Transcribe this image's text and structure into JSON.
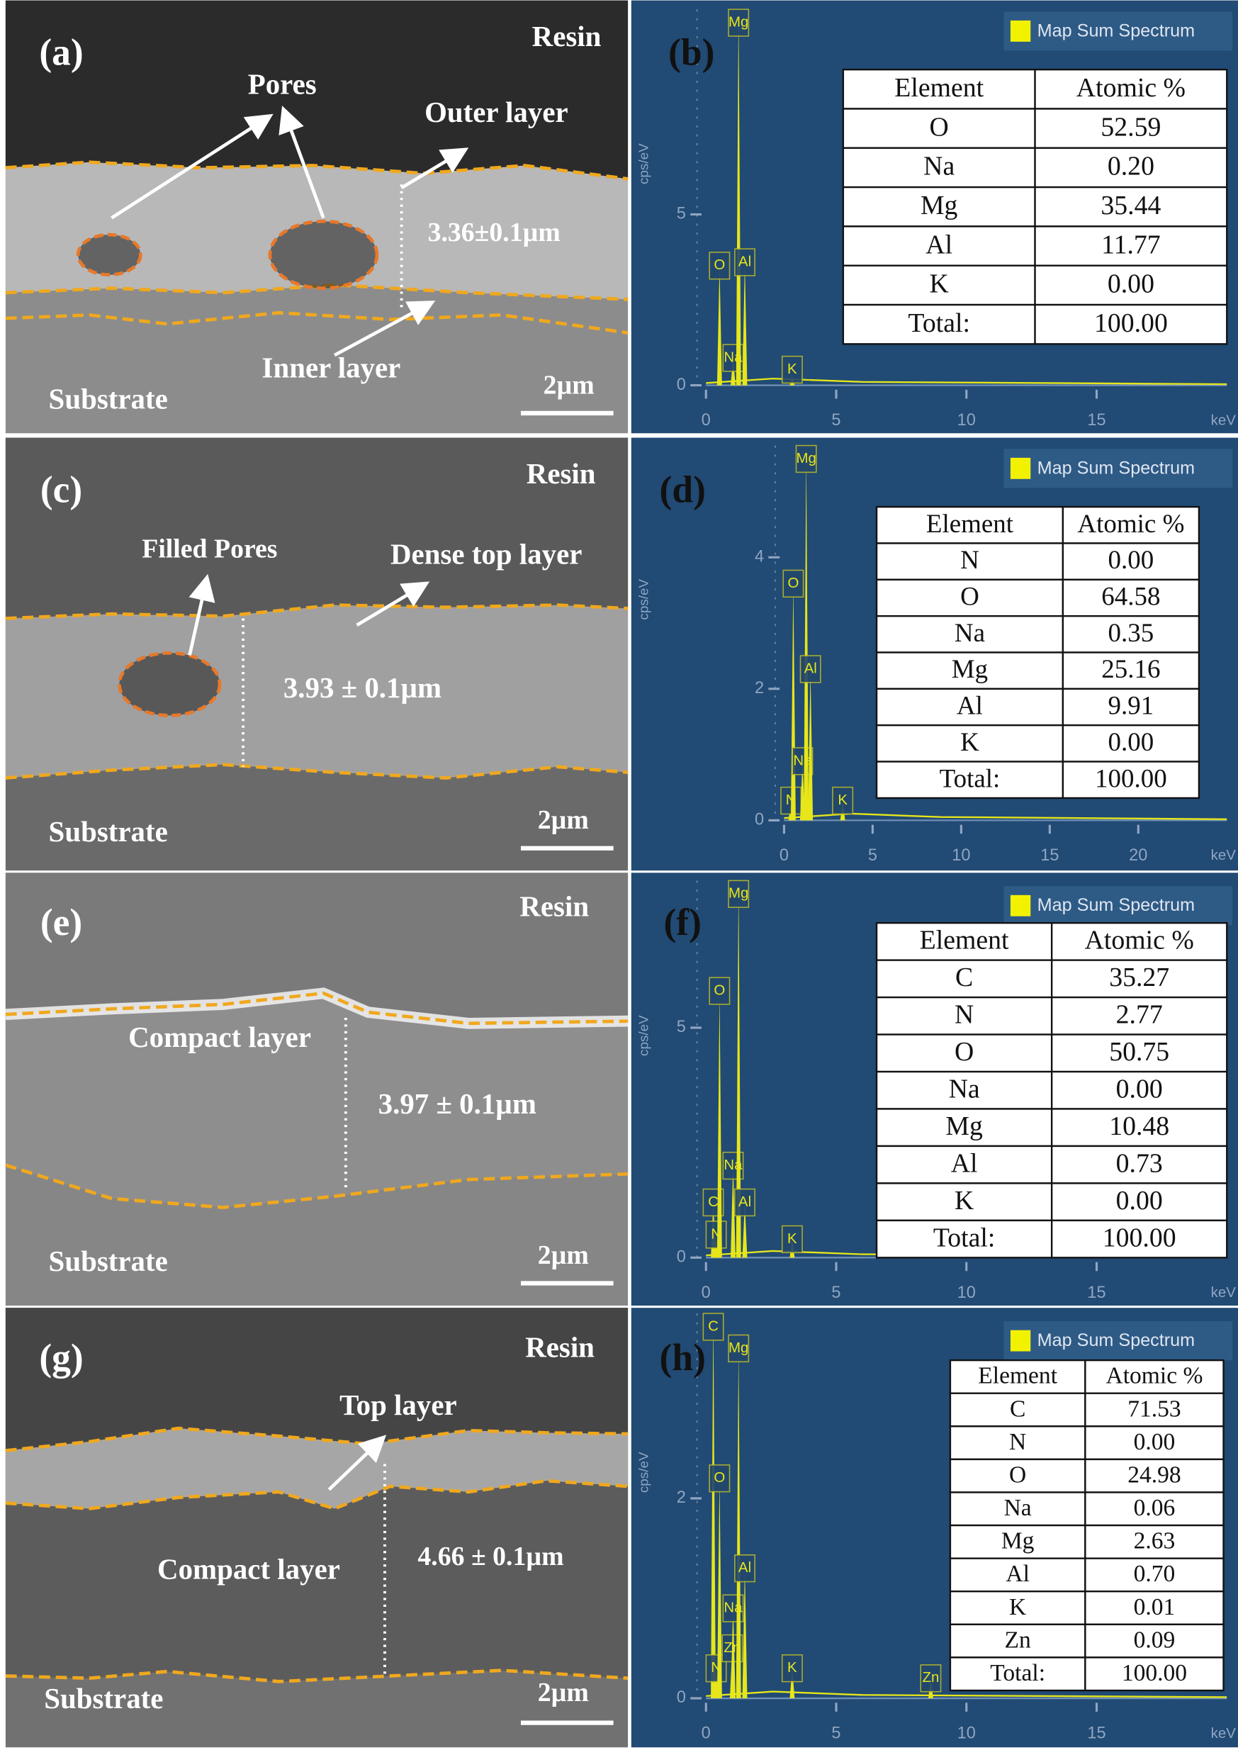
{
  "panels": [
    {
      "sem": {
        "label": "(a)",
        "texts": [
          "Resin",
          "Pores",
          "Outer layer",
          "3.36±0.1µm",
          "Inner layer",
          "Substrate",
          "2µm"
        ]
      },
      "eds": {
        "label": "(b)",
        "legend": "Map Sum Spectrum",
        "y_label": "cps/eV",
        "x_unit": "keV",
        "xlim": [
          0,
          20
        ],
        "ylim": [
          0,
          11
        ],
        "xticks": [
          0,
          5,
          10,
          15
        ],
        "yticks": [
          0,
          5
        ],
        "peaks": [
          {
            "element": "O",
            "energy": 0.52,
            "height": 3.5
          },
          {
            "element": "Na",
            "energy": 1.04,
            "height": 0.8
          },
          {
            "element": "Mg",
            "energy": 1.25,
            "height": 11
          },
          {
            "element": "Al",
            "energy": 1.49,
            "height": 3.6
          },
          {
            "element": "K",
            "energy": 3.31,
            "height": 0.3
          }
        ],
        "table": {
          "header": [
            "Element",
            "Atomic %"
          ],
          "rows": [
            [
              "O",
              "52.59"
            ],
            [
              "Na",
              "0.20"
            ],
            [
              "Mg",
              "35.44"
            ],
            [
              "Al",
              "11.77"
            ],
            [
              "K",
              "0.00"
            ],
            [
              "Total:",
              "100.00"
            ]
          ]
        }
      }
    },
    {
      "sem": {
        "label": "(c)",
        "texts": [
          "Resin",
          "Filled Pores",
          "Dense top layer",
          "3.93 ± 0.1µm",
          "Substrate",
          "2µm"
        ]
      },
      "eds": {
        "label": "(d)",
        "legend": "Map Sum Spectrum",
        "y_label": "cps/eV",
        "x_unit": "keV",
        "xlim": [
          0,
          25
        ],
        "ylim": [
          0,
          5.7
        ],
        "xticks": [
          0,
          5,
          10,
          15,
          20
        ],
        "yticks": [
          0,
          2,
          4
        ],
        "peaks": [
          {
            "element": "N",
            "energy": 0.39,
            "height": 0.3
          },
          {
            "element": "O",
            "energy": 0.52,
            "height": 3.6
          },
          {
            "element": "Na",
            "energy": 1.04,
            "height": 0.9
          },
          {
            "element": "Mg",
            "energy": 1.25,
            "height": 5.6
          },
          {
            "element": "Al",
            "energy": 1.49,
            "height": 2.3
          },
          {
            "element": "K",
            "energy": 3.31,
            "height": 0.3
          }
        ],
        "table": {
          "header": [
            "Element",
            "Atomic %"
          ],
          "rows": [
            [
              "N",
              "0.00"
            ],
            [
              "O",
              "64.58"
            ],
            [
              "Na",
              "0.35"
            ],
            [
              "Mg",
              "25.16"
            ],
            [
              "Al",
              "9.91"
            ],
            [
              "K",
              "0.00"
            ],
            [
              "Total:",
              "100.00"
            ]
          ]
        }
      }
    },
    {
      "sem": {
        "label": "(e)",
        "texts": [
          "Resin",
          "Compact layer",
          "3.97 ± 0.1µm",
          "Substrate",
          "2µm"
        ]
      },
      "eds": {
        "label": "(f)",
        "legend": "Map Sum Spectrum",
        "y_label": "cps/eV",
        "x_unit": "keV",
        "xlim": [
          0,
          20
        ],
        "ylim": [
          0,
          8.2
        ],
        "xticks": [
          0,
          5,
          10,
          15
        ],
        "yticks": [
          0,
          5
        ],
        "peaks": [
          {
            "element": "C",
            "energy": 0.28,
            "height": 1.2
          },
          {
            "element": "N",
            "energy": 0.39,
            "height": 0.5
          },
          {
            "element": "O",
            "energy": 0.52,
            "height": 5.8
          },
          {
            "element": "Na",
            "energy": 1.04,
            "height": 2.0
          },
          {
            "element": "Mg",
            "energy": 1.25,
            "height": 8.1
          },
          {
            "element": "Al",
            "energy": 1.49,
            "height": 1.2
          },
          {
            "element": "K",
            "energy": 3.31,
            "height": 0.4
          }
        ],
        "table": {
          "header": [
            "Element",
            "Atomic %"
          ],
          "rows": [
            [
              "C",
              "35.27"
            ],
            [
              "N",
              "2.77"
            ],
            [
              "O",
              "50.75"
            ],
            [
              "Na",
              "0.00"
            ],
            [
              "Mg",
              "10.48"
            ],
            [
              "Al",
              "0.73"
            ],
            [
              "K",
              "0.00"
            ],
            [
              "Total:",
              "100.00"
            ]
          ]
        }
      }
    },
    {
      "sem": {
        "label": "(g)",
        "texts": [
          "Resin",
          "Top layer",
          "Compact layer",
          "4.66 ± 0.1µm",
          "Substrate",
          "2µm"
        ]
      },
      "eds": {
        "label": "(h)",
        "legend": "Map Sum Spectrum",
        "y_label": "cps/eV",
        "x_unit": "keV",
        "xlim": [
          0,
          20
        ],
        "ylim": [
          0,
          3.85
        ],
        "xticks": [
          0,
          5,
          10,
          15
        ],
        "yticks": [
          0,
          2
        ],
        "peaks": [
          {
            "element": "C",
            "energy": 0.28,
            "height": 3.85
          },
          {
            "element": "N",
            "energy": 0.39,
            "height": 0.3
          },
          {
            "element": "O",
            "energy": 0.52,
            "height": 2.2
          },
          {
            "element": "Zn",
            "energy": 1.01,
            "height": 0.5
          },
          {
            "element": "Na",
            "energy": 1.04,
            "height": 0.9
          },
          {
            "element": "Mg",
            "energy": 1.25,
            "height": 3.5
          },
          {
            "element": "Al",
            "energy": 1.49,
            "height": 1.3
          },
          {
            "element": "K",
            "energy": 3.31,
            "height": 0.3
          },
          {
            "element": "Zn",
            "energy": 8.63,
            "height": 0.2
          }
        ],
        "table": {
          "header": [
            "Element",
            "Atomic %"
          ],
          "rows": [
            [
              "C",
              "71.53"
            ],
            [
              "N",
              "0.00"
            ],
            [
              "O",
              "24.98"
            ],
            [
              "Na",
              "0.06"
            ],
            [
              "Mg",
              "2.63"
            ],
            [
              "Al",
              "0.70"
            ],
            [
              "K",
              "0.01"
            ],
            [
              "Zn",
              "0.09"
            ],
            [
              "Total:",
              "100.00"
            ]
          ]
        }
      }
    }
  ]
}
